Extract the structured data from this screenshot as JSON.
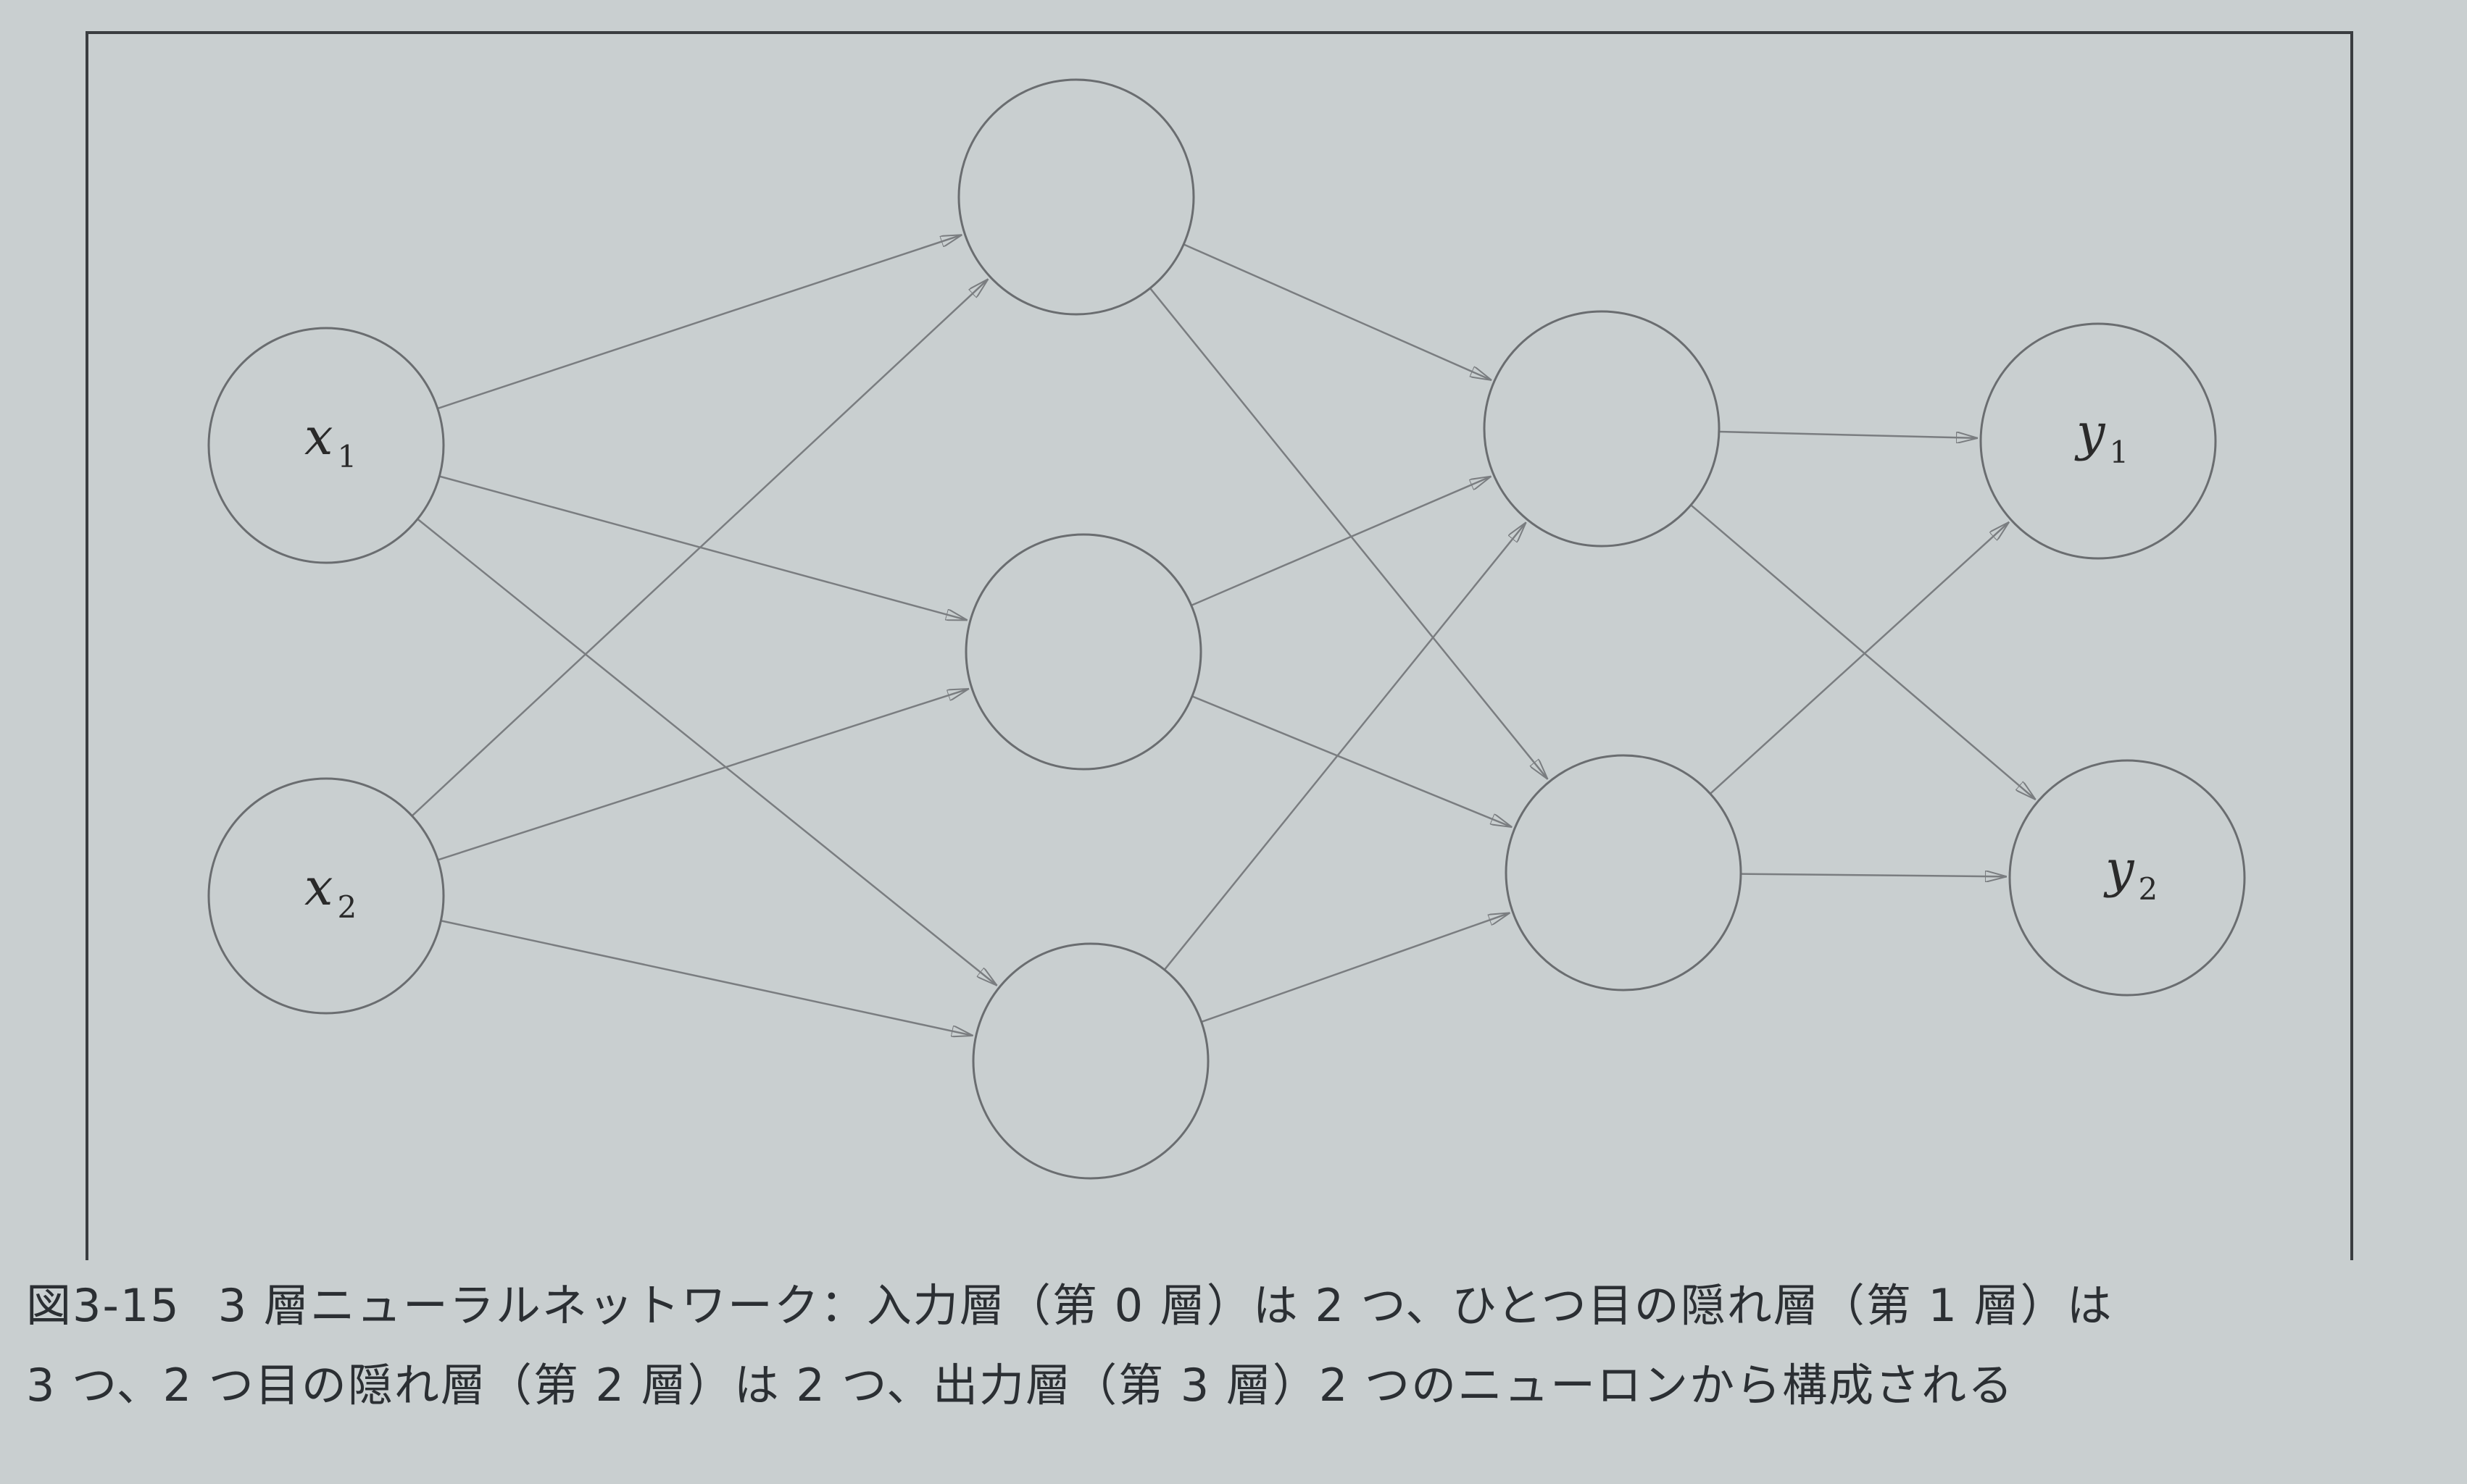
{
  "diagram": {
    "type": "neural-network",
    "layers": [
      {
        "neurons": [
          {
            "label": "x",
            "subscript": "1"
          },
          {
            "label": "x",
            "subscript": "2"
          }
        ]
      },
      {
        "neurons": [
          {
            "label": "",
            "subscript": ""
          },
          {
            "label": "",
            "subscript": ""
          },
          {
            "label": "",
            "subscript": ""
          }
        ]
      },
      {
        "neurons": [
          {
            "label": "",
            "subscript": ""
          },
          {
            "label": "",
            "subscript": ""
          }
        ]
      },
      {
        "neurons": [
          {
            "label": "y",
            "subscript": "1"
          },
          {
            "label": "y",
            "subscript": "2"
          }
        ]
      }
    ],
    "connections": "fully-connected"
  },
  "caption": {
    "figure_number": "図3-15",
    "line1": "3 層ニューラルネットワーク：入力層（第 0 層）は 2 つ、ひとつ目の隠れ層（第 1 層）は",
    "line2": "3 つ、2 つ目の隠れ層（第 2 層）は 2 つ、出力層（第 3 層）2 つのニューロンから構成される"
  },
  "colors": {
    "page": "#c9cfd0",
    "frame": "#3a3d40",
    "node_stroke": "#6a6d70",
    "edge": "#7a7d80",
    "text": "#2b2f33"
  }
}
